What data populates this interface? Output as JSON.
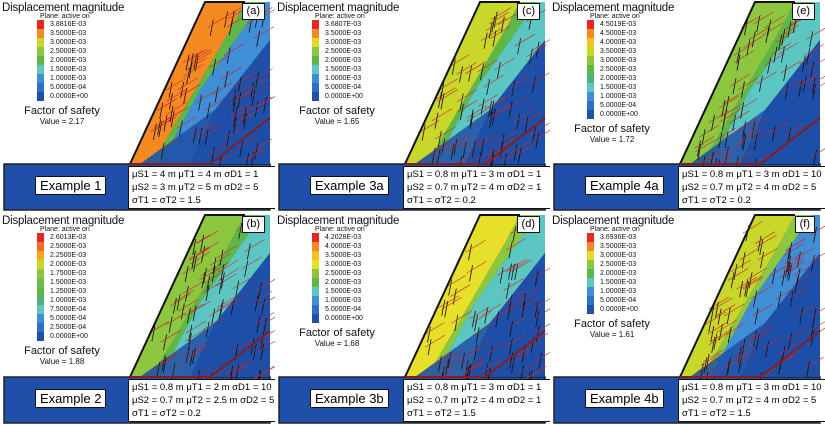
{
  "figure": {
    "panels": [
      {
        "id": "a",
        "tag": "(a)",
        "legend_title": "Displacement magnitude",
        "legend_subtitle": "Plane: active on",
        "legend": [
          {
            "value": "3.8816E-03",
            "color": "#e8262a"
          },
          {
            "value": "3.5000E-03",
            "color": "#f58a23"
          },
          {
            "value": "3.0000E-03",
            "color": "#c9d62a"
          },
          {
            "value": "2.5000E-03",
            "color": "#8dc63f"
          },
          {
            "value": "2.0000E-03",
            "color": "#5fb846"
          },
          {
            "value": "1.5000E-03",
            "color": "#5cc7c2"
          },
          {
            "value": "1.0000E-03",
            "color": "#3f8ed6"
          },
          {
            "value": "5.0000E-04",
            "color": "#2f6fc4"
          },
          {
            "value": "0.0000E+00",
            "color": "#1f4fa8"
          }
        ],
        "factor_of_safety_label": "Factor of safety",
        "factor_of_safety_value": "Value = 2.17",
        "example_label": "Example 1",
        "params": [
          "μS1 = 4 m  μT1 = 4 m σD1 = 1",
          "μS2 = 3 m  μT2 = 5 m σD2 = 5",
          "σT1 = σT2 = 1.5"
        ],
        "dominant_colors": [
          "#f58a23",
          "#5fb846",
          "#3f8ed6",
          "#1f4fa8"
        ]
      },
      {
        "id": "c",
        "tag": "(c)",
        "legend_title": "Displacement magnitude",
        "legend_subtitle": "Plane: active on",
        "legend": [
          {
            "value": "3.6807E-03",
            "color": "#e8262a"
          },
          {
            "value": "3.5000E-03",
            "color": "#f58a23"
          },
          {
            "value": "3.0000E-03",
            "color": "#e6d82a"
          },
          {
            "value": "2.5000E-03",
            "color": "#8dc63f"
          },
          {
            "value": "2.0000E-03",
            "color": "#5fb846"
          },
          {
            "value": "1.5000E-03",
            "color": "#5cc7c2"
          },
          {
            "value": "1.0000E-03",
            "color": "#3f8ed6"
          },
          {
            "value": "5.0000E-04",
            "color": "#2f6fc4"
          },
          {
            "value": "0.0000E+00",
            "color": "#1f4fa8"
          }
        ],
        "factor_of_safety_label": "Factor of safety",
        "factor_of_safety_value": "Value = 1.65",
        "example_label": "Example 3a",
        "params": [
          "μS1 = 0.8 m μT1 = 3 m σD1 = 1",
          "μS2 = 0.7 m μT2 = 4 m σD2 = 1",
          "σT1 = σT2 = 0.2"
        ],
        "dominant_colors": [
          "#c9d62a",
          "#5fb846",
          "#5cc7c2",
          "#1f4fa8"
        ]
      },
      {
        "id": "e",
        "tag": "(e)",
        "legend_title": "Displacement magnitude",
        "legend_subtitle": "Plane: active on",
        "legend": [
          {
            "value": "4.5019E-03",
            "color": "#e8262a"
          },
          {
            "value": "4.5000E-03",
            "color": "#f58a23"
          },
          {
            "value": "4.0000E-03",
            "color": "#f2c21f"
          },
          {
            "value": "3.5000E-03",
            "color": "#c9d62a"
          },
          {
            "value": "3.0000E-03",
            "color": "#8dc63f"
          },
          {
            "value": "2.5000E-03",
            "color": "#5fb846"
          },
          {
            "value": "2.0000E-03",
            "color": "#4fb07a"
          },
          {
            "value": "1.5000E-03",
            "color": "#5cc7c2"
          },
          {
            "value": "1.0000E-03",
            "color": "#3f8ed6"
          },
          {
            "value": "5.0000E-04",
            "color": "#2f6fc4"
          },
          {
            "value": "0.0000E+00",
            "color": "#1f4fa8"
          }
        ],
        "factor_of_safety_label": "Factor of safety",
        "factor_of_safety_value": "Value = 1.72",
        "example_label": "Example 4a",
        "params": [
          "μS1 = 0.8 m μT1 = 3 m σD1 = 10",
          "μS2 = 0.7 m μT2 = 4 m σD2 = 5",
          "σT1 = σT2 = 0.2"
        ],
        "dominant_colors": [
          "#8dc63f",
          "#5fb846",
          "#5cc7c2",
          "#1f4fa8"
        ]
      },
      {
        "id": "b",
        "tag": "(b)",
        "legend_title": "Displacement magnitude",
        "legend_subtitle": "Plane: active on",
        "legend": [
          {
            "value": "2.6013E-03",
            "color": "#e8262a"
          },
          {
            "value": "2.5000E-03",
            "color": "#f26b2a"
          },
          {
            "value": "2.2500E-03",
            "color": "#f5a623"
          },
          {
            "value": "2.0000E-03",
            "color": "#c9d62a"
          },
          {
            "value": "1.7500E-03",
            "color": "#8dc63f"
          },
          {
            "value": "1.5000E-03",
            "color": "#6cbf45"
          },
          {
            "value": "1.2500E-03",
            "color": "#5fb846"
          },
          {
            "value": "1.0000E-03",
            "color": "#4fb07a"
          },
          {
            "value": "7.5000E-04",
            "color": "#5cc7c2"
          },
          {
            "value": "5.0000E-04",
            "color": "#3f8ed6"
          },
          {
            "value": "2.5000E-04",
            "color": "#2f6fc4"
          },
          {
            "value": "0.0000E+00",
            "color": "#1f4fa8"
          }
        ],
        "factor_of_safety_label": "Factor of safety",
        "factor_of_safety_value": "Value = 1.88",
        "example_label": "Example 2",
        "params": [
          "μS1 = 0.8 m μT1 = 2 m σD1 = 10",
          "μS2 = 0.7 m μT2 = 2.5 m σD2 = 5",
          "σT1 = σT2 = 0.2"
        ],
        "dominant_colors": [
          "#8dc63f",
          "#5fb846",
          "#5cc7c2",
          "#1f4fa8"
        ]
      },
      {
        "id": "d",
        "tag": "(d)",
        "legend_title": "Displacement magnitude",
        "legend_subtitle": "Plane: active on",
        "legend": [
          {
            "value": "4.2028E-03",
            "color": "#e8262a"
          },
          {
            "value": "4.0000E-03",
            "color": "#f58a23"
          },
          {
            "value": "3.5000E-03",
            "color": "#f2c21f"
          },
          {
            "value": "3.0000E-03",
            "color": "#e6e02a"
          },
          {
            "value": "2.5000E-03",
            "color": "#8dc63f"
          },
          {
            "value": "2.0000E-03",
            "color": "#5fb846"
          },
          {
            "value": "1.5000E-03",
            "color": "#5cc7c2"
          },
          {
            "value": "1.0000E-03",
            "color": "#3f8ed6"
          },
          {
            "value": "5.0000E-04",
            "color": "#2f6fc4"
          },
          {
            "value": "0.0000E+00",
            "color": "#1f4fa8"
          }
        ],
        "factor_of_safety_label": "Factor of safety",
        "factor_of_safety_value": "Value = 1.68",
        "example_label": "Example 3b",
        "params": [
          "μS1 = 0.8 m  μT1 = 3 m  σD1 = 1",
          "μS2 = 0.7 m  μT2 = 4 m  σD2 = 1",
          "σT1 = σT2 = 1.5"
        ],
        "dominant_colors": [
          "#e6e02a",
          "#8dc63f",
          "#5cc7c2",
          "#1f4fa8"
        ]
      },
      {
        "id": "f",
        "tag": "(f)",
        "legend_title": "Displacement magnitude",
        "legend_subtitle": "Plane: active on",
        "legend": [
          {
            "value": "3.6936E-03",
            "color": "#e8262a"
          },
          {
            "value": "3.5000E-03",
            "color": "#f58a23"
          },
          {
            "value": "3.0000E-03",
            "color": "#e6d82a"
          },
          {
            "value": "2.5000E-03",
            "color": "#8dc63f"
          },
          {
            "value": "2.0000E-03",
            "color": "#5fb846"
          },
          {
            "value": "1.5000E-03",
            "color": "#5cc7c2"
          },
          {
            "value": "1.0000E-03",
            "color": "#3f8ed6"
          },
          {
            "value": "5.0000E-04",
            "color": "#2f6fc4"
          },
          {
            "value": "0.0000E+00",
            "color": "#1f4fa8"
          }
        ],
        "factor_of_safety_label": "Factor of safety",
        "factor_of_safety_value": "Value = 1.61",
        "example_label": "Example 4b",
        "params": [
          "μS1 = 0.8 m  μT1 = 3 m  σD1 = 10",
          "μS2 = 0.7 m  μT2 = 4 m  σD2 = 5",
          "σT1 = σT2 = 1.5"
        ],
        "dominant_colors": [
          "#c9d62a",
          "#8dc63f",
          "#3f8ed6",
          "#1f4fa8"
        ]
      }
    ],
    "colors": {
      "base_blue": "#1f4fa8",
      "joint_red": "#c8282d",
      "joint_black": "#111111",
      "outline_dark_red": "#8b1a1a"
    }
  }
}
